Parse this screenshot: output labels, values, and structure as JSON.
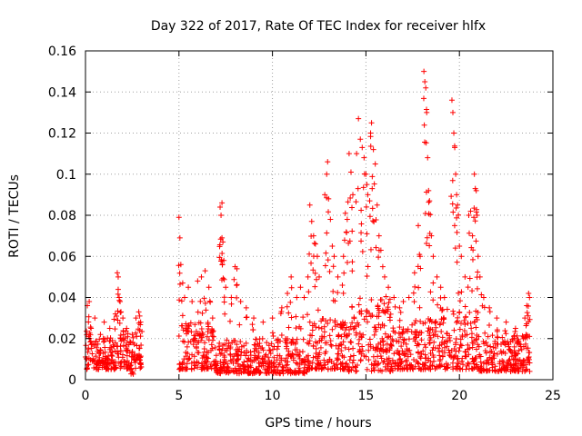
{
  "chart_data": {
    "type": "scatter",
    "title": "Day 322 of 2017, Rate Of TEC Index for receiver hlfx",
    "xlabel": "GPS time / hours",
    "ylabel": "ROTI / TECUs",
    "xlim": [
      0,
      25
    ],
    "ylim": [
      0,
      0.16
    ],
    "xticks": [
      0,
      5,
      10,
      15,
      20,
      25
    ],
    "yticks": [
      0,
      0.02,
      0.04,
      0.06,
      0.08,
      0.1,
      0.12,
      0.14,
      0.16
    ],
    "xtick_labels": [
      "0",
      "5",
      "10",
      "15",
      "20",
      "25"
    ],
    "ytick_labels": [
      "0",
      "0.02",
      "0.04",
      "0.06",
      "0.08",
      "0.1",
      "0.12",
      "0.14",
      "0.16"
    ],
    "grid": true,
    "marker": "+",
    "color": "#ff0000",
    "series": [
      {
        "name": "ROTI",
        "points": [
          [
            0.1,
            0.036
          ],
          [
            0.2,
            0.038
          ],
          [
            0.3,
            0.025
          ],
          [
            0.5,
            0.03
          ],
          [
            0.8,
            0.022
          ],
          [
            1.0,
            0.028
          ],
          [
            1.3,
            0.025
          ],
          [
            1.6,
            0.032
          ],
          [
            1.7,
            0.052
          ],
          [
            1.75,
            0.05
          ],
          [
            1.8,
            0.04
          ],
          [
            1.85,
            0.038
          ],
          [
            1.9,
            0.033
          ],
          [
            2.0,
            0.03
          ],
          [
            2.2,
            0.025
          ],
          [
            2.5,
            0.022
          ],
          [
            2.7,
            0.03
          ],
          [
            2.85,
            0.033
          ],
          [
            2.9,
            0.031
          ],
          [
            2.95,
            0.028
          ],
          [
            2.3,
            0.008
          ],
          [
            2.5,
            0.004
          ],
          [
            5.0,
            0.079
          ],
          [
            5.05,
            0.069
          ],
          [
            5.1,
            0.056
          ],
          [
            5.2,
            0.047
          ],
          [
            5.3,
            0.04
          ],
          [
            5.5,
            0.045
          ],
          [
            5.7,
            0.038
          ],
          [
            6.0,
            0.048
          ],
          [
            6.2,
            0.05
          ],
          [
            6.4,
            0.053
          ],
          [
            6.6,
            0.045
          ],
          [
            6.8,
            0.03
          ],
          [
            7.2,
            0.084
          ],
          [
            7.3,
            0.086
          ],
          [
            7.25,
            0.08
          ],
          [
            7.3,
            0.069
          ],
          [
            7.35,
            0.067
          ],
          [
            7.4,
            0.058
          ],
          [
            7.5,
            0.045
          ],
          [
            7.8,
            0.04
          ],
          [
            8.0,
            0.055
          ],
          [
            8.1,
            0.054
          ],
          [
            8.3,
            0.038
          ],
          [
            8.6,
            0.035
          ],
          [
            9.0,
            0.03
          ],
          [
            9.5,
            0.028
          ],
          [
            10.0,
            0.03
          ],
          [
            10.5,
            0.035
          ],
          [
            10.8,
            0.042
          ],
          [
            11.0,
            0.05
          ],
          [
            11.3,
            0.04
          ],
          [
            11.5,
            0.045
          ],
          [
            11.7,
            0.04
          ],
          [
            11.9,
            0.05
          ],
          [
            12.0,
            0.085
          ],
          [
            12.1,
            0.077
          ],
          [
            12.2,
            0.07
          ],
          [
            12.3,
            0.066
          ],
          [
            12.4,
            0.06
          ],
          [
            12.5,
            0.05
          ],
          [
            12.8,
            0.09
          ],
          [
            12.9,
            0.1
          ],
          [
            12.95,
            0.106
          ],
          [
            13.0,
            0.088
          ],
          [
            13.1,
            0.078
          ],
          [
            13.2,
            0.065
          ],
          [
            13.3,
            0.06
          ],
          [
            13.5,
            0.05
          ],
          [
            13.8,
            0.06
          ],
          [
            13.9,
            0.081
          ],
          [
            14.0,
            0.078
          ],
          [
            14.1,
            0.11
          ],
          [
            14.2,
            0.101
          ],
          [
            14.3,
            0.09
          ],
          [
            14.5,
            0.11
          ],
          [
            14.6,
            0.127
          ],
          [
            14.7,
            0.117
          ],
          [
            14.8,
            0.113
          ],
          [
            14.9,
            0.108
          ],
          [
            15.0,
            0.1
          ],
          [
            15.05,
            0.095
          ],
          [
            15.1,
            0.09
          ],
          [
            15.2,
            0.087
          ],
          [
            15.25,
            0.12
          ],
          [
            15.3,
            0.125
          ],
          [
            15.4,
            0.112
          ],
          [
            15.5,
            0.105
          ],
          [
            15.6,
            0.085
          ],
          [
            15.7,
            0.07
          ],
          [
            15.8,
            0.063
          ],
          [
            15.9,
            0.055
          ],
          [
            16.0,
            0.05
          ],
          [
            16.2,
            0.045
          ],
          [
            16.5,
            0.04
          ],
          [
            16.8,
            0.035
          ],
          [
            17.0,
            0.038
          ],
          [
            17.3,
            0.04
          ],
          [
            17.6,
            0.052
          ],
          [
            17.8,
            0.075
          ],
          [
            17.9,
            0.06
          ],
          [
            18.1,
            0.15
          ],
          [
            18.15,
            0.145
          ],
          [
            18.2,
            0.142
          ],
          [
            18.25,
            0.13
          ],
          [
            18.3,
            0.108
          ],
          [
            18.35,
            0.092
          ],
          [
            18.4,
            0.087
          ],
          [
            18.5,
            0.07
          ],
          [
            18.6,
            0.06
          ],
          [
            18.8,
            0.05
          ],
          [
            19.0,
            0.045
          ],
          [
            19.2,
            0.04
          ],
          [
            19.6,
            0.136
          ],
          [
            19.65,
            0.13
          ],
          [
            19.7,
            0.12
          ],
          [
            19.75,
            0.113
          ],
          [
            19.8,
            0.1
          ],
          [
            19.85,
            0.09
          ],
          [
            19.9,
            0.085
          ],
          [
            20.0,
            0.065
          ],
          [
            20.1,
            0.06
          ],
          [
            20.3,
            0.05
          ],
          [
            20.5,
            0.08
          ],
          [
            20.6,
            0.082
          ],
          [
            20.7,
            0.07
          ],
          [
            20.8,
            0.1
          ],
          [
            20.85,
            0.093
          ],
          [
            20.9,
            0.092
          ],
          [
            20.95,
            0.08
          ],
          [
            21.0,
            0.06
          ],
          [
            21.1,
            0.05
          ],
          [
            21.3,
            0.04
          ],
          [
            21.6,
            0.035
          ],
          [
            22.0,
            0.03
          ],
          [
            22.5,
            0.028
          ],
          [
            23.0,
            0.025
          ],
          [
            23.5,
            0.03
          ],
          [
            23.6,
            0.036
          ],
          [
            23.7,
            0.042
          ],
          [
            23.75,
            0.04
          ]
        ],
        "dense_bands": [
          {
            "x": [
              0.0,
              3.0
            ],
            "y": [
              0.005,
              0.022
            ]
          },
          {
            "x": [
              5.0,
              7.0
            ],
            "y": [
              0.005,
              0.028
            ]
          },
          {
            "x": [
              7.0,
              12.0
            ],
            "y": [
              0.003,
              0.02
            ]
          },
          {
            "x": [
              12.0,
              14.0
            ],
            "y": [
              0.005,
              0.03
            ]
          },
          {
            "x": [
              14.0,
              16.5
            ],
            "y": [
              0.004,
              0.04
            ]
          },
          {
            "x": [
              16.5,
              19.0
            ],
            "y": [
              0.005,
              0.03
            ]
          },
          {
            "x": [
              19.0,
              21.0
            ],
            "y": [
              0.005,
              0.035
            ]
          },
          {
            "x": [
              21.0,
              23.8
            ],
            "y": [
              0.004,
              0.022
            ]
          }
        ]
      }
    ]
  }
}
